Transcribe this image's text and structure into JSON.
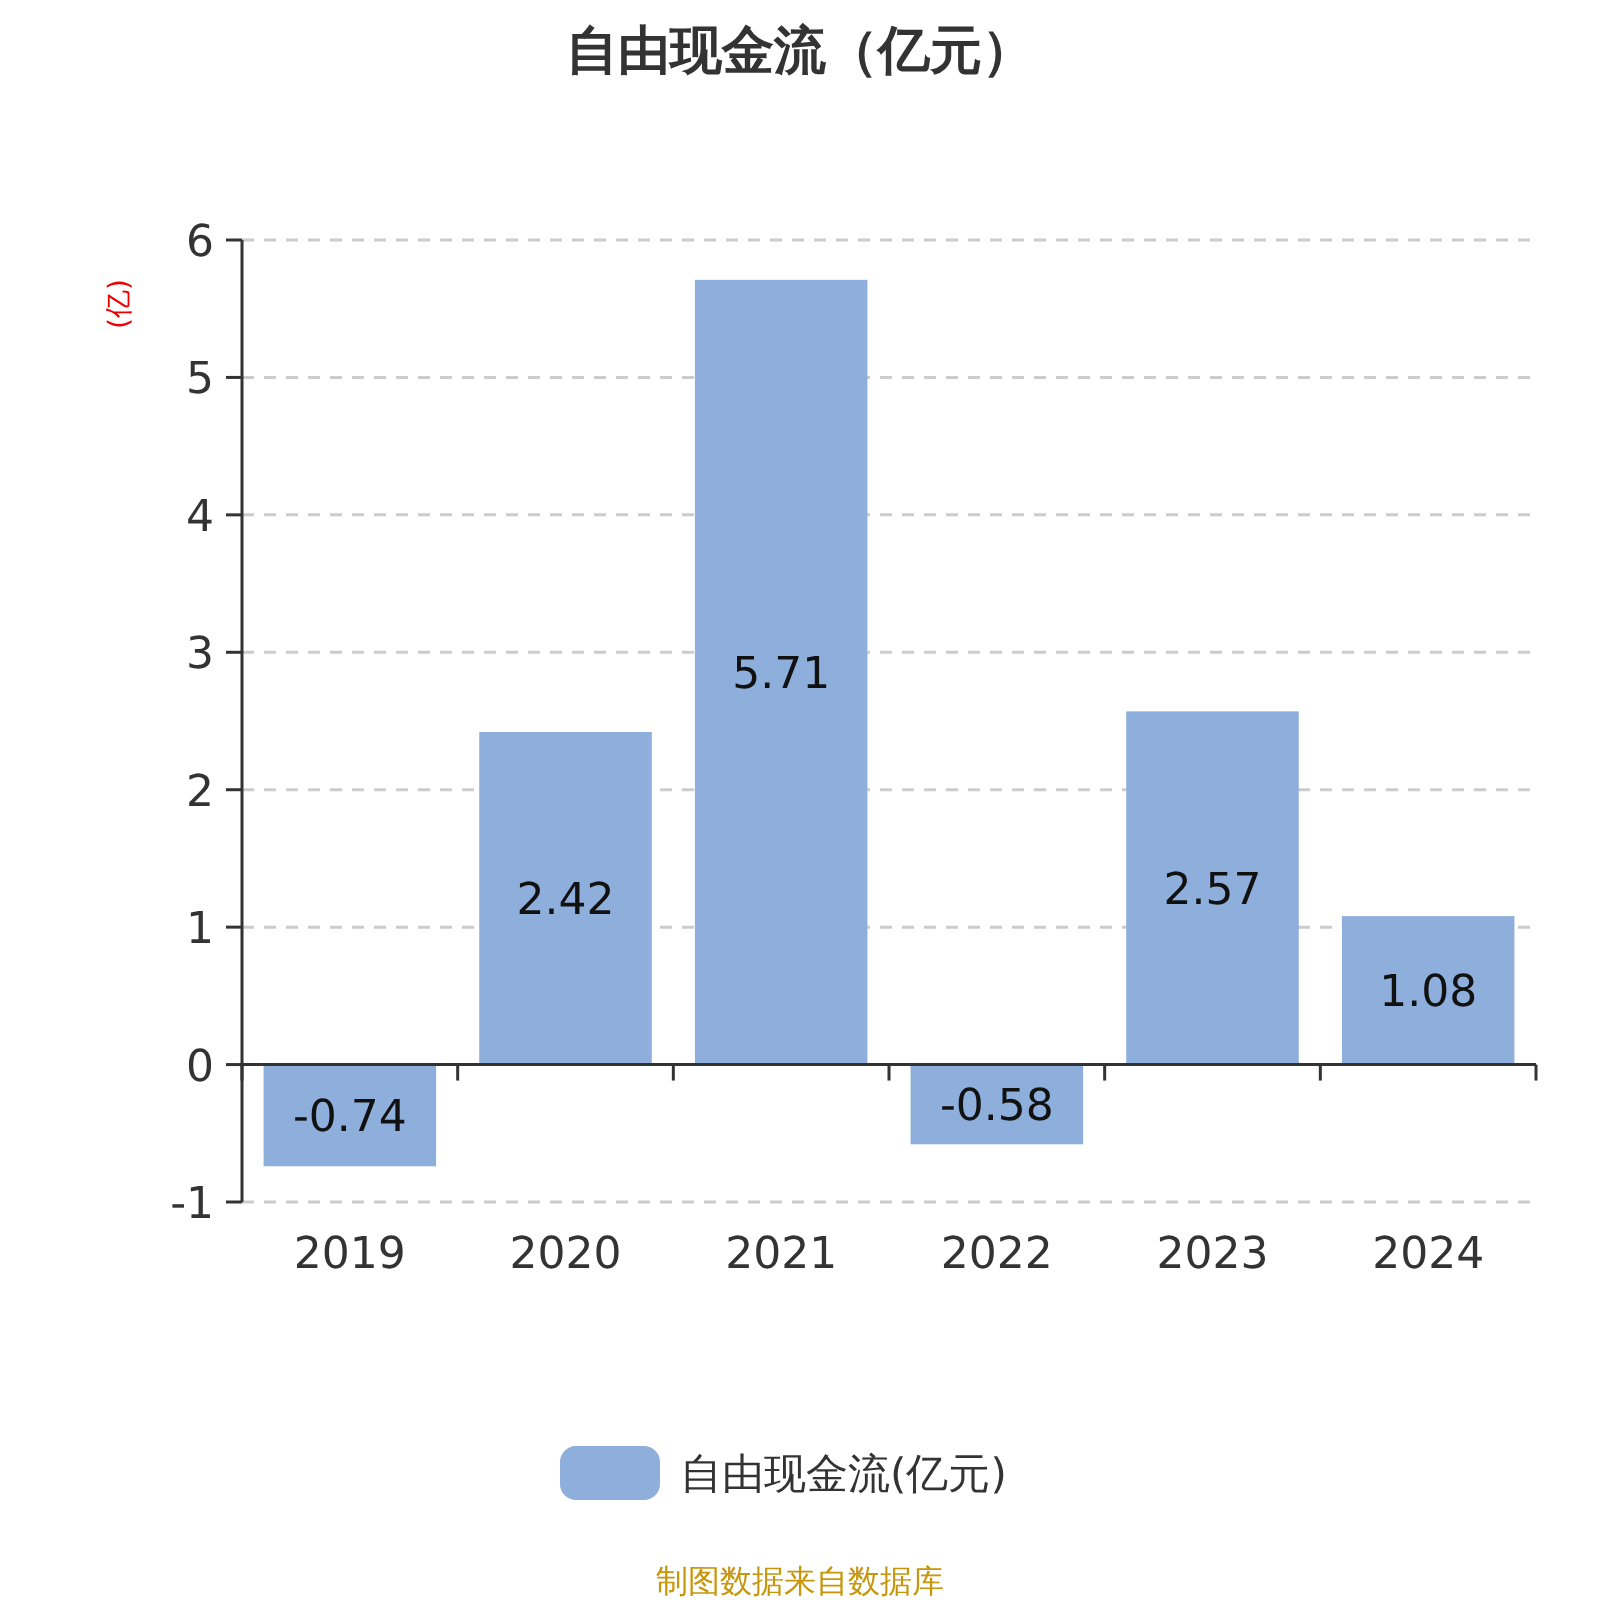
{
  "chart_data": {
    "type": "bar",
    "title": "自由现金流（亿元）",
    "ylabel": "(亿)",
    "categories": [
      "2019",
      "2020",
      "2021",
      "2022",
      "2023",
      "2024"
    ],
    "series": [
      {
        "name": "自由现金流(亿元)",
        "color": "#8eaedb",
        "values": [
          -0.74,
          2.42,
          5.71,
          -0.58,
          2.57,
          1.08
        ]
      }
    ],
    "ylim": [
      -1,
      6
    ],
    "yticks": [
      -1,
      0,
      1,
      2,
      3,
      4,
      5,
      6
    ],
    "grid": "y",
    "legend": "bottom",
    "data_labels": true,
    "annotations": [
      "制图数据来自数据库"
    ]
  }
}
